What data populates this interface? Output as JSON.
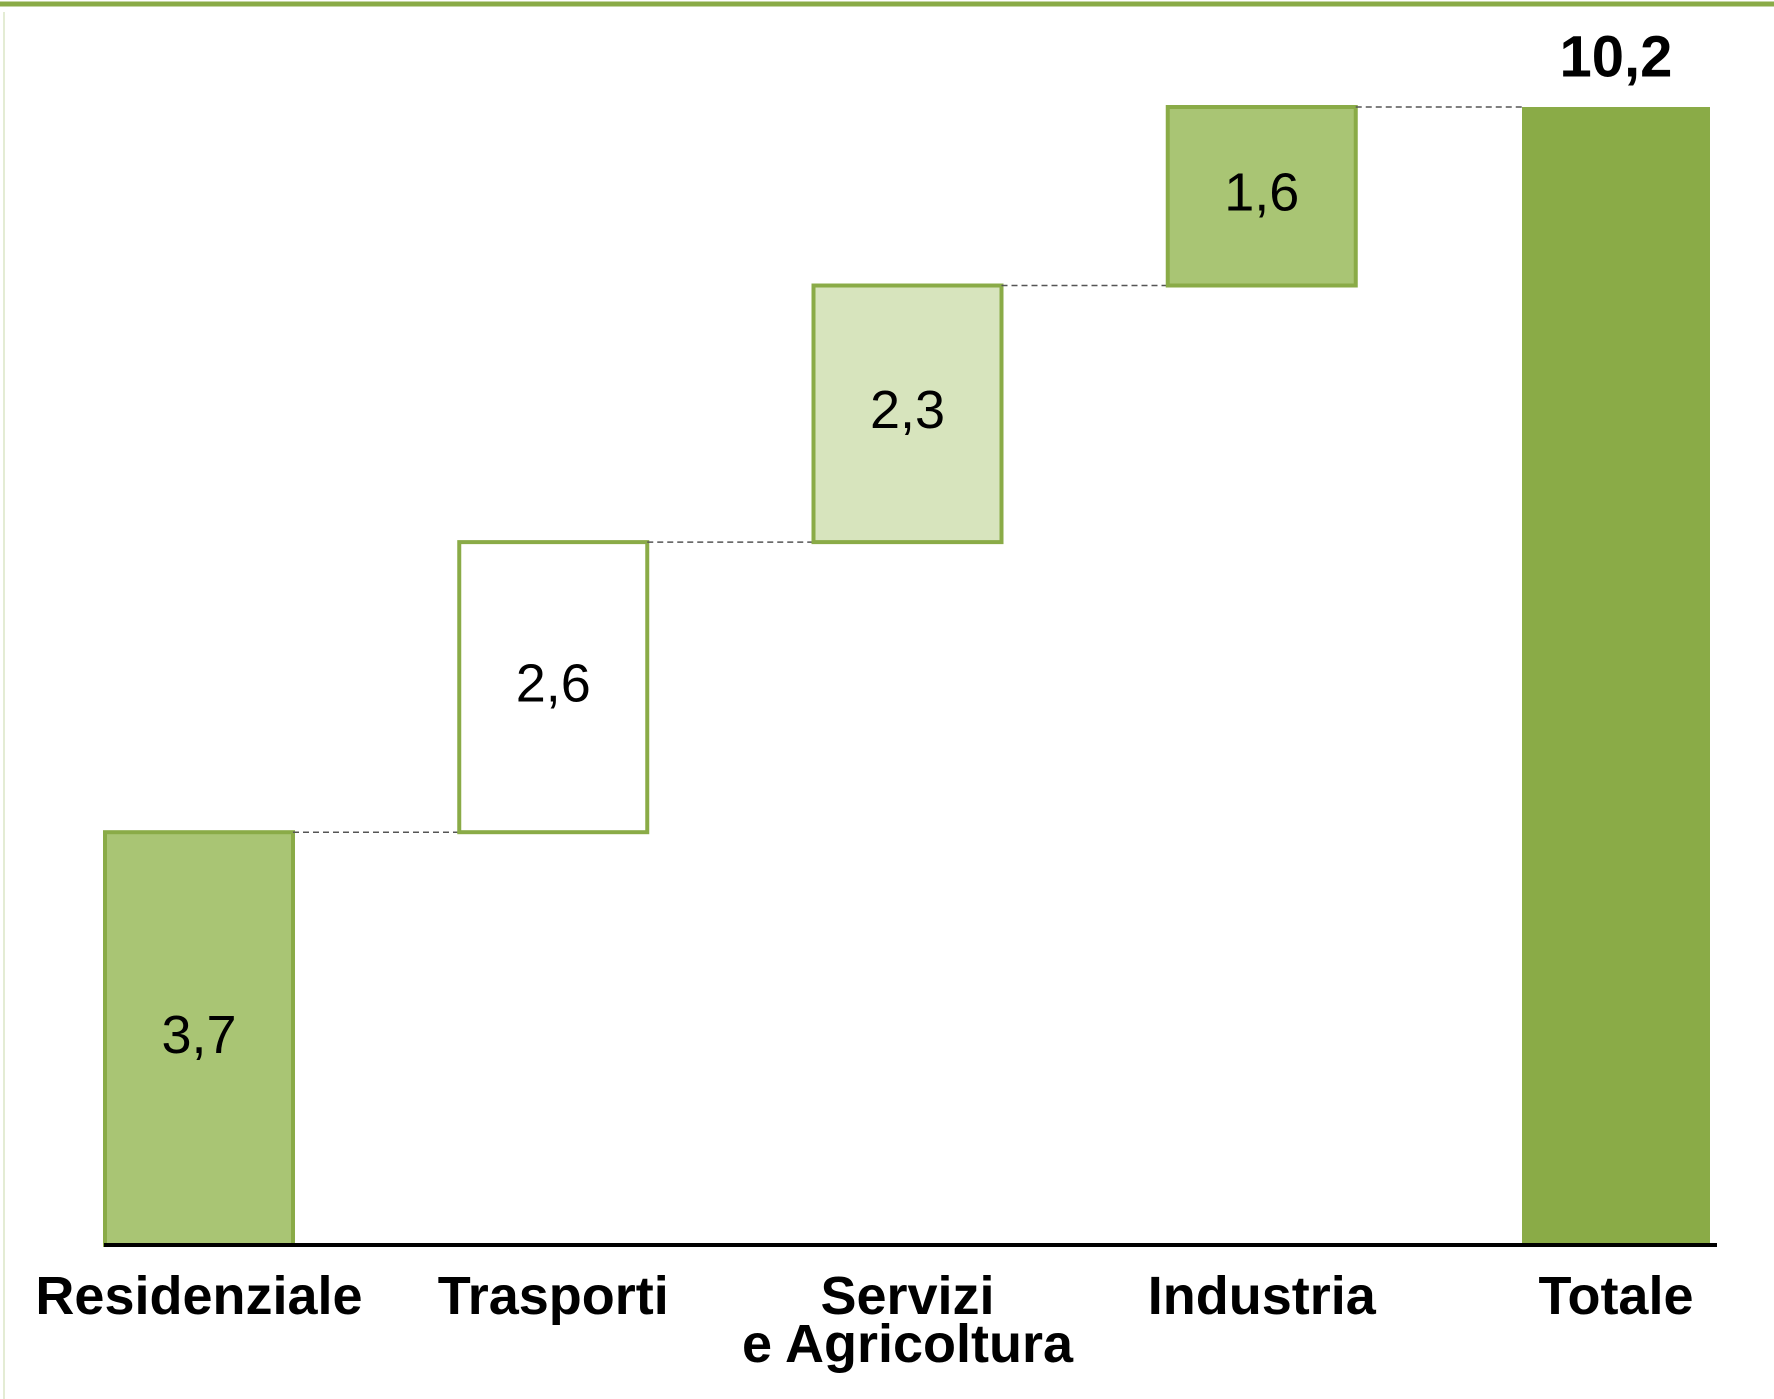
{
  "chart_data": {
    "type": "waterfall",
    "categories": [
      "Residenziale",
      "Trasporti",
      "Servizi\ne Agricoltura",
      "Industria",
      "Totale"
    ],
    "values": [
      3.7,
      2.6,
      2.3,
      1.6,
      10.2
    ],
    "value_labels": [
      "3,7",
      "2,6",
      "2,3",
      "1,6",
      "10,2"
    ],
    "colors": [
      "#a9c574",
      "#ffffff",
      "#d7e4bd",
      "#a9c574",
      "#8aab47"
    ],
    "edge_color": "#8aab47"
  }
}
